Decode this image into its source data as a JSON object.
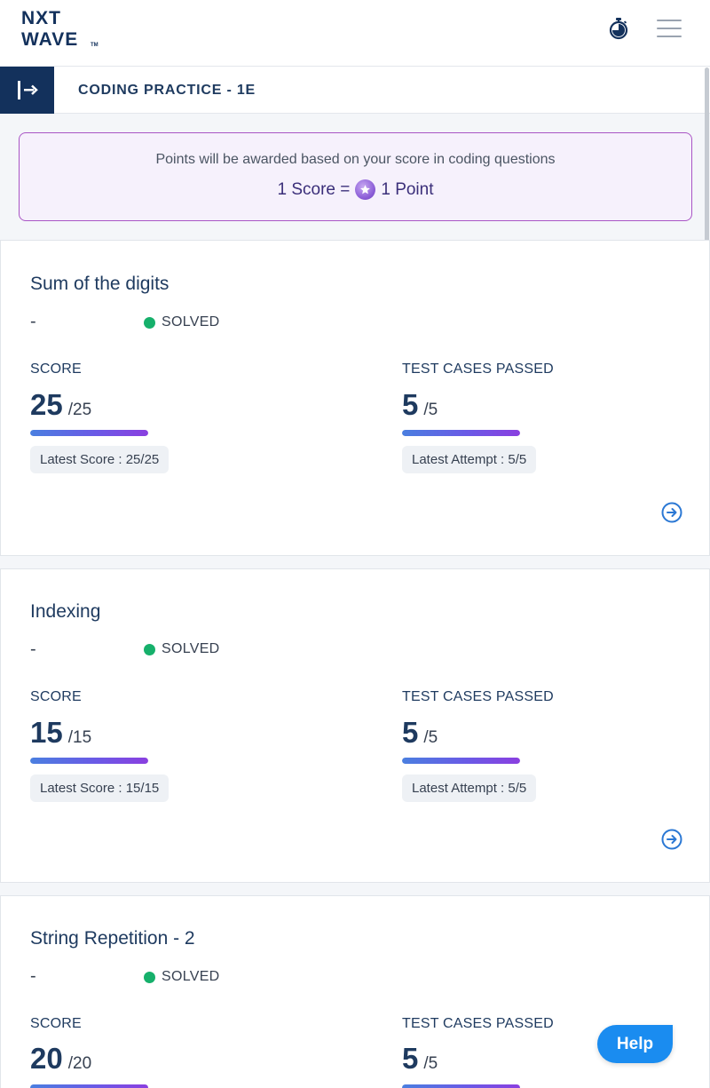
{
  "header": {
    "logo_line1": "NXT",
    "logo_line2": "WAVE",
    "logo_tm": "TM"
  },
  "subheader": {
    "title": "CODING PRACTICE - 1E"
  },
  "banner": {
    "line1": "Points will be awarded based on your score in coding questions",
    "score_text": "1 Score =",
    "point_text": "1 Point"
  },
  "questions": [
    {
      "title": "Sum of the digits",
      "dash": "-",
      "status": "SOLVED",
      "score_label": "SCORE",
      "score": "25",
      "score_total": "/25",
      "score_progress": 1.0,
      "latest_score": "Latest Score : 25/25",
      "tests_label": "TEST CASES PASSED",
      "tests_passed": "5",
      "tests_total": "/5",
      "tests_progress": 1.0,
      "latest_attempt": "Latest Attempt : 5/5"
    },
    {
      "title": "Indexing",
      "dash": "-",
      "status": "SOLVED",
      "score_label": "SCORE",
      "score": "15",
      "score_total": "/15",
      "score_progress": 1.0,
      "latest_score": "Latest Score : 15/15",
      "tests_label": "TEST CASES PASSED",
      "tests_passed": "5",
      "tests_total": "/5",
      "tests_progress": 1.0,
      "latest_attempt": "Latest Attempt : 5/5"
    },
    {
      "title": "String Repetition - 2",
      "dash": "-",
      "status": "SOLVED",
      "score_label": "SCORE",
      "score": "20",
      "score_total": "/20",
      "score_progress": 1.0,
      "tests_label": "TEST CASES PASSED",
      "tests_passed": "5",
      "tests_total": "/5",
      "tests_progress": 1.0
    }
  ],
  "help": {
    "label": "Help"
  },
  "colors": {
    "brand_navy": "#13315c",
    "solved_green": "#16b06b",
    "help_blue": "#1a8cf0",
    "banner_border": "#a955c5"
  },
  "icons": {
    "timer": "stopwatch-icon",
    "menu": "hamburger-menu-icon",
    "sidebar_toggle": "expand-sidebar-icon",
    "coin": "star-coin-icon",
    "open_question": "arrow-right-circle-icon"
  }
}
